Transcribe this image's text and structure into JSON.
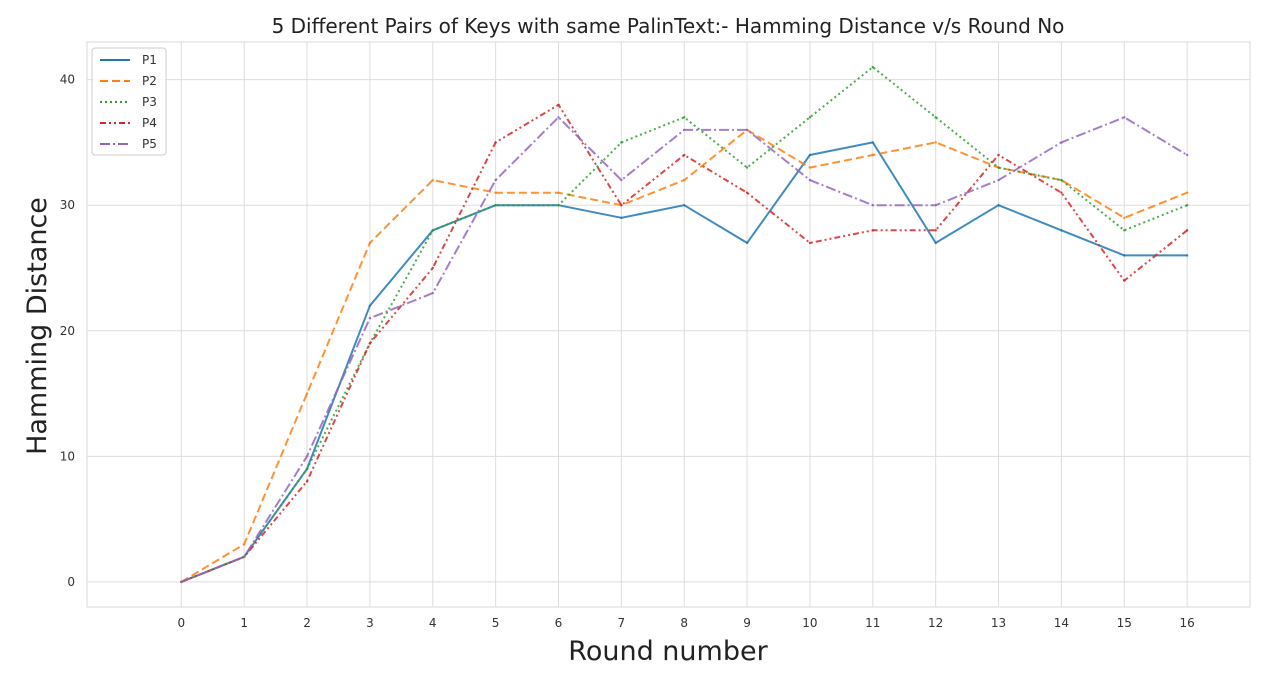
{
  "chart_data": {
    "type": "line",
    "title": "5 Different Pairs of Keys with same PalinText:- Hamming Distance v/s Round No",
    "xlabel": "Round number",
    "ylabel": "Hamming Distance",
    "x": [
      0,
      1,
      2,
      3,
      4,
      5,
      6,
      7,
      8,
      9,
      10,
      11,
      12,
      13,
      14,
      15,
      16
    ],
    "xlim": [
      -1.5,
      17.0
    ],
    "ylim": [
      -2,
      43
    ],
    "yticks": [
      0,
      10,
      20,
      30,
      40
    ],
    "grid": true,
    "legend_position": "top-left",
    "series": [
      {
        "name": "P1",
        "color": "#1f77b4",
        "dash": "solid",
        "values": [
          0,
          2,
          9,
          22,
          28,
          30,
          30,
          29,
          30,
          27,
          34,
          35,
          27,
          30,
          28,
          26,
          26
        ]
      },
      {
        "name": "P2",
        "color": "#ff7f0e",
        "dash": "dashed",
        "values": [
          0,
          3,
          15,
          27,
          32,
          31,
          31,
          30,
          32,
          36,
          33,
          34,
          35,
          33,
          32,
          29,
          31
        ]
      },
      {
        "name": "P3",
        "color": "#2ca02c",
        "dash": "dotted",
        "values": [
          0,
          2,
          9,
          19,
          28,
          30,
          30,
          35,
          37,
          33,
          37,
          41,
          37,
          33,
          32,
          28,
          30
        ]
      },
      {
        "name": "P4",
        "color": "#d62728",
        "dash": "dashdotdot",
        "values": [
          0,
          2,
          8,
          19,
          25,
          35,
          38,
          30,
          34,
          31,
          27,
          28,
          28,
          34,
          31,
          24,
          28
        ]
      },
      {
        "name": "P5",
        "color": "#9467bd",
        "dash": "dashdot",
        "values": [
          0,
          2,
          10,
          21,
          23,
          32,
          37,
          32,
          36,
          36,
          32,
          30,
          30,
          32,
          35,
          37,
          34
        ]
      }
    ]
  }
}
